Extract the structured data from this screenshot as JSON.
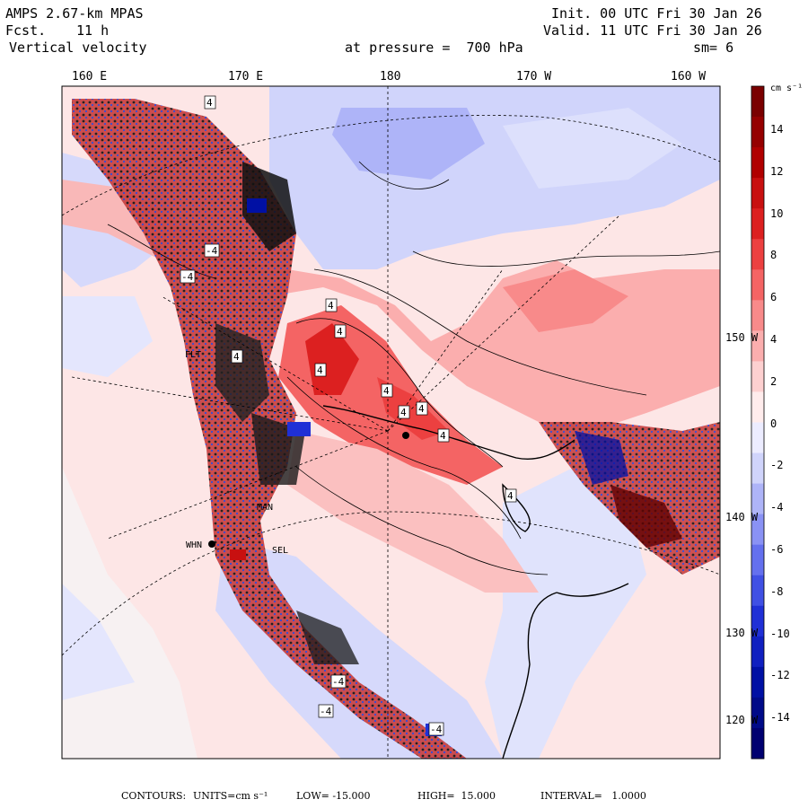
{
  "header": {
    "model": "AMPS 2.67-km MPAS",
    "forecast_label": "Fcst.",
    "forecast_hours": "11 h",
    "field": "Vertical velocity",
    "init": "Init. 00 UTC Fri 30 Jan 26",
    "valid": "Valid. 11 UTC Fri 30 Jan 26",
    "level": "at pressure =  700 hPa",
    "smoothing": "sm= 6"
  },
  "map": {
    "longitude_labels": [
      "160 E",
      "170 E",
      "180",
      "170 W",
      "160 W"
    ],
    "latitude_labels": [
      "150 W",
      "140 W",
      "130 W",
      "120 W"
    ],
    "station_labels": [
      "WHN",
      "MAN",
      "SEL",
      "FLT"
    ],
    "contour_label_positive": "4",
    "contour_label_negative": "-4"
  },
  "colorbar": {
    "unit": "cm s⁻¹",
    "ticks": [
      "14",
      "12",
      "10",
      "8",
      "6",
      "4",
      "2",
      "0",
      "-2",
      "-4",
      "-6",
      "-8",
      "-10",
      "-12",
      "-14"
    ],
    "colors": [
      "#7a0000",
      "#950000",
      "#b00000",
      "#c81010",
      "#dc2020",
      "#ec4040",
      "#f46464",
      "#f88a8a",
      "#fbaeae",
      "#fdd0d0",
      "#ffecec",
      "#ececff",
      "#d0d4fb",
      "#aeb4f8",
      "#8a92f4",
      "#6470ee",
      "#4050e4",
      "#2030d6",
      "#1020c0",
      "#0010a4",
      "#000a88",
      "#000070"
    ]
  },
  "footer": {
    "contours_label": "CONTOURS:",
    "units": "UNITS=cm s⁻¹",
    "low": "LOW= -15.000",
    "high": "HIGH=  15.000",
    "interval": "INTERVAL=   1.0000"
  }
}
